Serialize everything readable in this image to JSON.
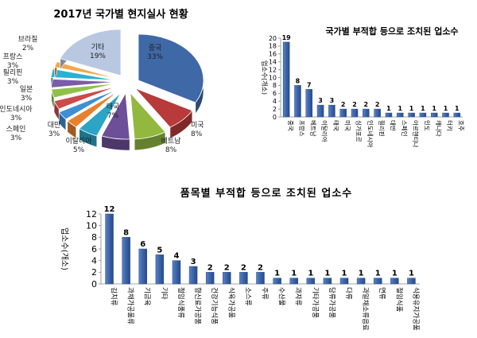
{
  "chart_data": [
    {
      "type": "pie",
      "title": "2017년 국가별 현지실사 현황",
      "slices": [
        {
          "label": "중국",
          "value": 33,
          "display": "33%",
          "color": "#3f68a6"
        },
        {
          "label": "미국",
          "value": 8,
          "display": "8%",
          "color": "#b83a3a"
        },
        {
          "label": "베트남",
          "value": 8,
          "display": "8%",
          "color": "#92b83f"
        },
        {
          "label": "태국",
          "value": 7,
          "display": "7%",
          "color": "#6d4e98"
        },
        {
          "label": "이탈리아",
          "value": 5,
          "display": "5%",
          "color": "#2ba4c6"
        },
        {
          "label": "대만",
          "value": 3,
          "display": "3%",
          "color": "#e8812d"
        },
        {
          "label": "스페인",
          "value": 3,
          "display": "3%",
          "color": "#3e8fd3"
        },
        {
          "label": "인도네시아",
          "value": 3,
          "display": "3%",
          "color": "#cc4a4a"
        },
        {
          "label": "일본",
          "value": 3,
          "display": "3%",
          "color": "#8fc14a"
        },
        {
          "label": "필리핀",
          "value": 3,
          "display": "3%",
          "color": "#7b5ca8"
        },
        {
          "label": "프랑스",
          "value": 3,
          "display": "3%",
          "color": "#2cb0d3"
        },
        {
          "label": "브라질",
          "value": 2,
          "display": "2%",
          "color": "#f3a64a"
        },
        {
          "label": "기타",
          "value": 19,
          "display": "19%",
          "color": "#b9c7e1"
        }
      ]
    },
    {
      "type": "bar",
      "title": "국가별 부적합 등으로 조치된 업소수",
      "ylabel": "업소수(개소)",
      "ylim": [
        0,
        20
      ],
      "yticks": [
        0,
        2,
        4,
        6,
        8,
        10,
        12,
        14,
        16,
        18,
        20
      ],
      "categories": [
        "중국",
        "프랑스",
        "베트남",
        "이탈리아",
        "태국",
        "미국",
        "싱가포르",
        "인도네시아",
        "필리핀",
        "대만",
        "스페인",
        "아르헨티나",
        "인도",
        "캐나다",
        "터키",
        "호주"
      ],
      "values": [
        19,
        8,
        7,
        3,
        3,
        2,
        2,
        2,
        2,
        1,
        1,
        1,
        1,
        1,
        1,
        1
      ]
    },
    {
      "type": "bar",
      "title": "품목별 부적합 등으로 조치된 업소수",
      "ylabel": "업소수(개소)",
      "ylim": [
        0,
        12
      ],
      "yticks": [
        0,
        2,
        4,
        6,
        8,
        10,
        12
      ],
      "categories": [
        "김치류",
        "과채가공품류",
        "기금육",
        "기타",
        "절임식품류",
        "향신료가공품",
        "건강기능식품",
        "식육가공품",
        "소스류",
        "주류",
        "수산물",
        "과자류",
        "기타가공품",
        "당류가공품",
        "다류",
        "과일채소류음료",
        "면류",
        "절임식품",
        "식용유지가공품"
      ],
      "values": [
        12,
        8,
        6,
        5,
        4,
        3,
        2,
        2,
        2,
        2,
        1,
        1,
        1,
        1,
        1,
        1,
        1,
        1,
        1
      ]
    }
  ]
}
